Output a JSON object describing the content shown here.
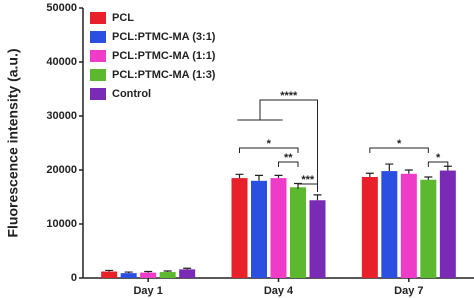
{
  "chart_data": {
    "type": "bar",
    "ylabel": "Fluorescence intensity (a.u.)",
    "categories": [
      "Day 1",
      "Day 4",
      "Day 7"
    ],
    "series": [
      {
        "name": "PCL",
        "color": "#e8202a",
        "values": [
          1200,
          18500,
          18700
        ],
        "errors": [
          200,
          700,
          700
        ]
      },
      {
        "name": "PCL:PTMC-MA (3:1)",
        "color": "#2b4fe0",
        "values": [
          900,
          18000,
          19800
        ],
        "errors": [
          200,
          1000,
          1300
        ]
      },
      {
        "name": "PCL:PTMC-MA (1:1)",
        "color": "#ee3cc8",
        "values": [
          1000,
          18500,
          19300
        ],
        "errors": [
          200,
          500,
          700
        ]
      },
      {
        "name": "PCL:PTMC-MA (1:3)",
        "color": "#5cb82e",
        "values": [
          1100,
          16800,
          18200
        ],
        "errors": [
          200,
          700,
          500
        ]
      },
      {
        "name": "Control",
        "color": "#7a2bb5",
        "values": [
          1600,
          14400,
          19900
        ],
        "errors": [
          200,
          1000,
          800
        ]
      }
    ],
    "annotations": [
      "*",
      "**",
      "***",
      "****",
      "*",
      "*"
    ],
    "ylim": [
      0,
      50000
    ],
    "yticks": [
      0,
      10000,
      20000,
      30000,
      40000,
      50000
    ],
    "legend": "upper left"
  }
}
